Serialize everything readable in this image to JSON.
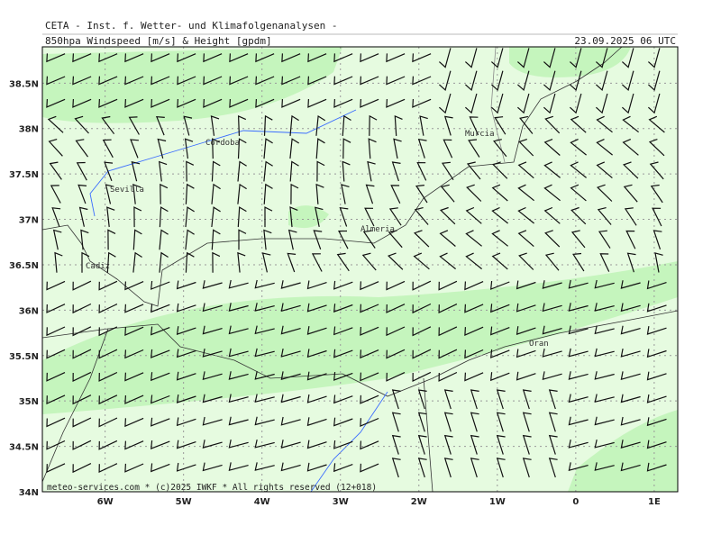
{
  "header": {
    "title": "CETA - Inst. f. Wetter- und Klimafolgenanalysen -",
    "subtitle": "850hpa Windspeed [m/s] & Height [gpdm]",
    "date": "23.09.2025 06 UTC"
  },
  "map": {
    "xlim": [
      -6.8,
      1.3
    ],
    "ylim": [
      34,
      38.9
    ],
    "xticks": [
      {
        "value": -6,
        "label": "6W"
      },
      {
        "value": -5,
        "label": "5W"
      },
      {
        "value": -4,
        "label": "4W"
      },
      {
        "value": -3,
        "label": "3W"
      },
      {
        "value": -2,
        "label": "2W"
      },
      {
        "value": -1,
        "label": "1W"
      },
      {
        "value": 0,
        "label": "0"
      },
      {
        "value": 1,
        "label": "1E"
      }
    ],
    "yticks": [
      {
        "value": 34,
        "label": "34N"
      },
      {
        "value": 34.5,
        "label": "34.5N"
      },
      {
        "value": 35,
        "label": "35N"
      },
      {
        "value": 35.5,
        "label": "35.5N"
      },
      {
        "value": 36,
        "label": "36N"
      },
      {
        "value": 36.5,
        "label": "36.5N"
      },
      {
        "value": 37,
        "label": "37N"
      },
      {
        "value": 37.5,
        "label": "37.5N"
      },
      {
        "value": 38,
        "label": "38N"
      },
      {
        "value": 38.5,
        "label": "38.5N"
      }
    ],
    "cities": [
      "Cordoba",
      "Sevilla",
      "Almeria",
      "Murcia",
      "Cadiz",
      "Oran"
    ]
  },
  "footer": "meteo-services.com * (c)2025 IWKF * All rights reserved (12+018)"
}
